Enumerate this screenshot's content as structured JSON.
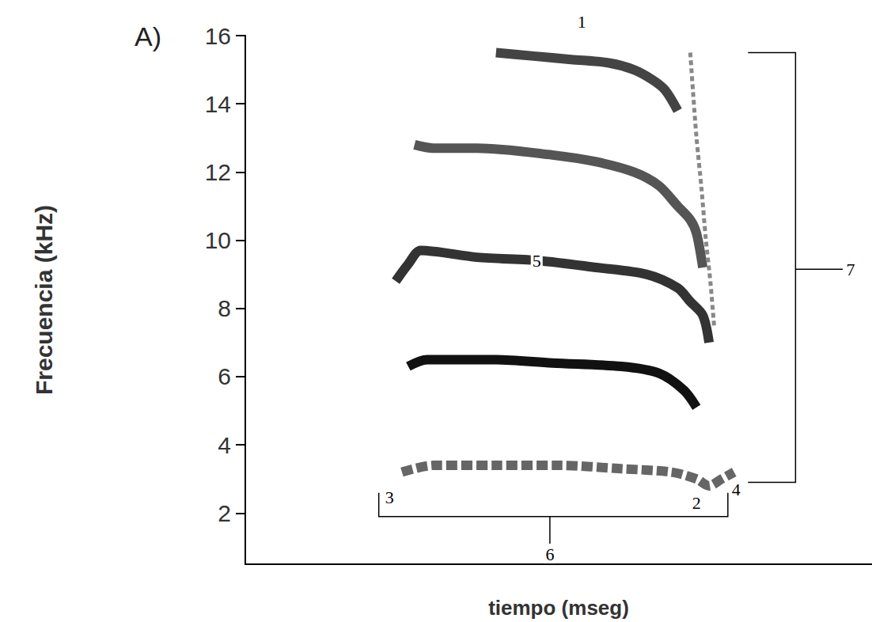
{
  "chart_data": {
    "type": "line",
    "title": "A)",
    "xlabel": "tiempo (mseg)",
    "ylabel": "Frecuencia (kHz)",
    "xlim": [
      0,
      100
    ],
    "ylim": [
      0.5,
      16
    ],
    "yticks": [
      2,
      4,
      6,
      8,
      10,
      12,
      14,
      16
    ],
    "grid": false,
    "tick_labels": "y",
    "series": [
      {
        "color": "#666666",
        "line_style": "dashed",
        "x": [
          25,
          30,
          40,
          50,
          60,
          68,
          72,
          74,
          76,
          78
        ],
        "values": [
          3.2,
          3.4,
          3.4,
          3.4,
          3.3,
          3.2,
          3.0,
          2.8,
          3.0,
          3.2
        ]
      },
      {
        "color": "#111111",
        "line_style": "solid",
        "x": [
          26,
          29,
          40,
          49,
          60,
          66,
          70,
          72
        ],
        "values": [
          6.3,
          6.5,
          6.5,
          6.4,
          6.3,
          6.1,
          5.6,
          5.1
        ]
      },
      {
        "color": "#333333",
        "line_style": "solid",
        "x": [
          24,
          26,
          28,
          37,
          47,
          56,
          64,
          69,
          71,
          73,
          74
        ],
        "values": [
          8.8,
          9.3,
          9.7,
          9.5,
          9.4,
          9.2,
          9.0,
          8.6,
          8.2,
          7.8,
          7.0
        ]
      },
      {
        "color": "#555555",
        "line_style": "solid",
        "x": [
          27,
          30,
          37,
          49,
          56,
          62,
          66,
          69,
          71,
          72,
          73
        ],
        "values": [
          12.8,
          12.7,
          12.7,
          12.5,
          12.3,
          12.0,
          11.6,
          11.0,
          10.6,
          10.2,
          9.2
        ]
      },
      {
        "color": "#444444",
        "line_style": "solid",
        "x": [
          40,
          46,
          52,
          58,
          62,
          65,
          67,
          69
        ],
        "values": [
          15.5,
          15.4,
          15.3,
          15.2,
          15.0,
          14.7,
          14.4,
          13.8
        ]
      },
      {
        "color": "#888888",
        "line_style": "dotted",
        "x": [
          71,
          71.5,
          72,
          72.8,
          73.5,
          74.2,
          74.8
        ],
        "values": [
          15.5,
          14.2,
          13.0,
          11.5,
          10.0,
          8.8,
          7.5
        ]
      }
    ],
    "annotations": [
      {
        "text": "1",
        "x": 53.7,
        "y": 16.4
      },
      {
        "text": "2",
        "x": 72,
        "y": 2.3
      },
      {
        "text": "3",
        "x": 23,
        "y": 2.45
      },
      {
        "text": "4",
        "x": 78.3,
        "y": 2.7
      },
      {
        "text": "5",
        "x": 46.5,
        "y": 9.4
      },
      {
        "text": "6",
        "x": 48.6,
        "y": 0.8,
        "bracket": {
          "x": [
            21.3,
            77
          ],
          "y": 1.9
        }
      },
      {
        "text": "7",
        "x": 96.6,
        "y": 9.15,
        "bracket": {
          "y": [
            2.9,
            15.5
          ],
          "x": 87.8
        }
      }
    ]
  }
}
